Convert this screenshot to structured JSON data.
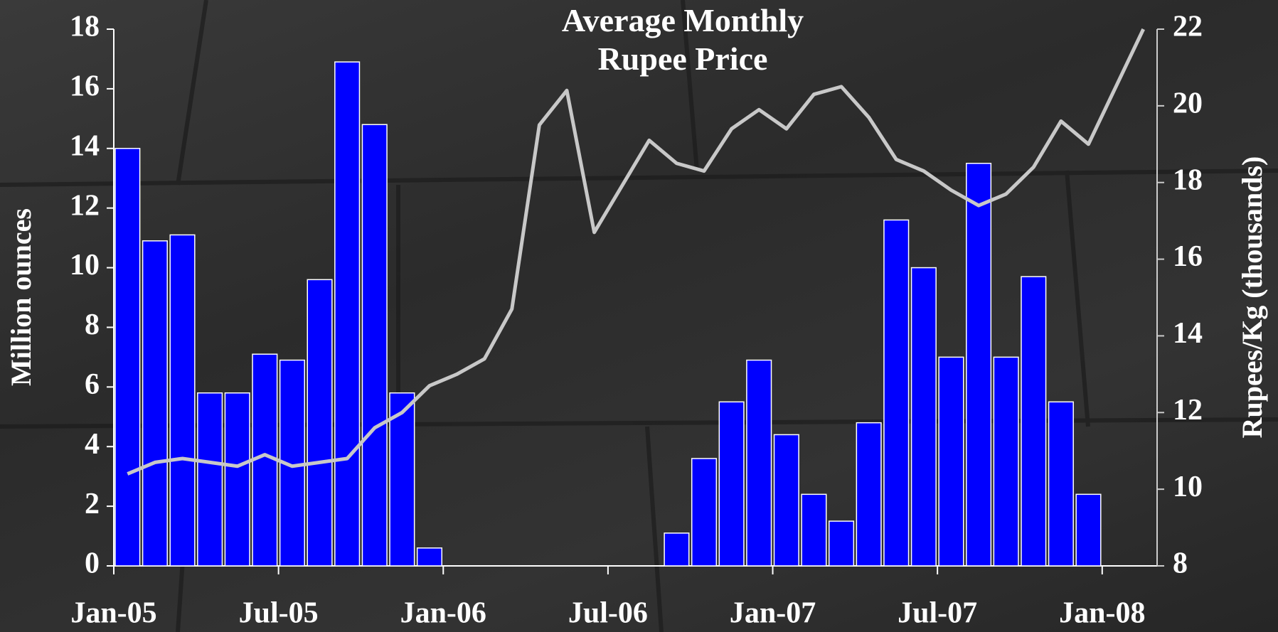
{
  "chart_data": {
    "type": "bar-line",
    "title": "Average Monthly Rupee Price",
    "ylabel": "Million ounces",
    "y2label": "Rupees/Kg (thousands)",
    "categories": [
      "Jan-05",
      null,
      null,
      null,
      null,
      null,
      "Jul-05",
      null,
      null,
      null,
      null,
      null,
      "Jan-06",
      null,
      null,
      null,
      null,
      null,
      "Jul-06",
      null,
      null,
      null,
      null,
      null,
      "Jan-07",
      null,
      null,
      null,
      null,
      null,
      "Jul-07",
      null,
      null,
      null,
      null,
      null,
      "Jan-08",
      null
    ],
    "series": [
      {
        "type": "bar",
        "color": "#0000ff",
        "values": [
          14.0,
          10.9,
          11.1,
          5.8,
          5.8,
          7.1,
          6.9,
          9.6,
          16.9,
          14.8,
          5.8,
          0.6,
          0,
          0,
          0,
          0,
          0,
          0,
          0,
          0,
          1.1,
          3.6,
          5.5,
          6.9,
          4.4,
          2.4,
          1.5,
          4.8,
          11.6,
          10.0,
          7.0,
          13.5,
          7.0,
          9.7,
          5.5,
          2.4,
          null,
          null
        ]
      },
      {
        "type": "line",
        "axis": "y2",
        "color": "#c8c8c8",
        "values": [
          10.4,
          10.7,
          10.8,
          10.7,
          10.6,
          10.9,
          10.6,
          10.7,
          10.8,
          11.6,
          12.0,
          12.7,
          13.0,
          13.4,
          14.7,
          19.5,
          20.4,
          16.7,
          17.9,
          19.1,
          18.5,
          18.3,
          19.4,
          19.9,
          19.4,
          20.3,
          20.5,
          19.7,
          18.6,
          18.3,
          17.8,
          17.4,
          17.7,
          18.4,
          19.6,
          19.0,
          20.5,
          22.0
        ]
      }
    ],
    "ylim": [
      0,
      18
    ],
    "yticks": [
      0,
      2,
      4,
      6,
      8,
      10,
      12,
      14,
      16,
      18
    ],
    "y2lim": [
      8,
      22
    ],
    "y2ticks": [
      8,
      10,
      12,
      14,
      16,
      18,
      20,
      22
    ]
  }
}
